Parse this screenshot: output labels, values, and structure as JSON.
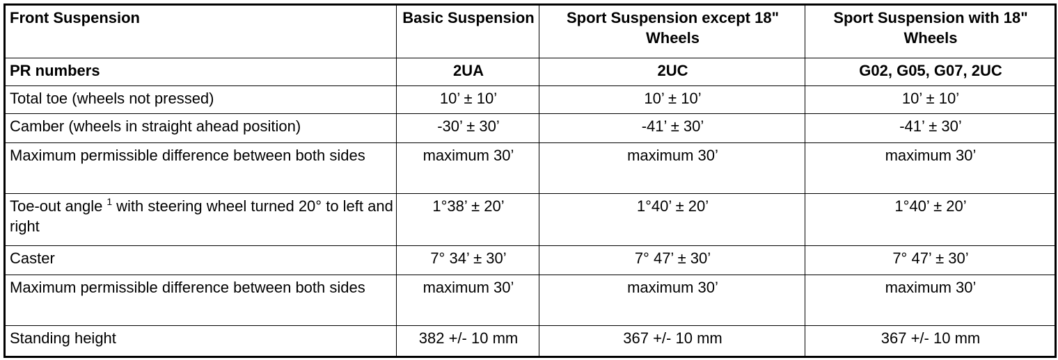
{
  "table": {
    "header": [
      "Front Suspension",
      "Basic Suspension",
      "Sport Suspension except 18\" Wheels",
      "Sport Suspension with 18\" Wheels"
    ],
    "pr": [
      "PR numbers",
      "2UA",
      "2UC",
      "G02, G05, G07, 2UC"
    ],
    "rows": [
      {
        "label": "Total toe (wheels not pressed)",
        "values": [
          "10’ ± 10’",
          "10’ ± 10’",
          "10’ ± 10’"
        ]
      },
      {
        "label": "Camber (wheels in straight ahead position)",
        "values": [
          "-30’ ± 30’",
          "-41’ ± 30’",
          "-41’ ± 30’"
        ]
      },
      {
        "label": "Maximum permissible difference between both sides",
        "values": [
          "maximum 30’",
          "maximum 30’",
          "maximum 30’"
        ]
      },
      {
        "label": "Toe-out angle",
        "note": "1",
        "label_rest": "with steering wheel turned 20° to left and right",
        "values": [
          "1°38’ ± 20’",
          "1°40’ ± 20’",
          "1°40’ ± 20’"
        ]
      },
      {
        "label": "Caster",
        "values": [
          "7° 34’ ± 30’",
          "7° 47’ ± 30’",
          "7° 47’ ± 30’"
        ]
      },
      {
        "label": "Maximum permissible difference between both sides",
        "values": [
          "maximum 30’",
          "maximum 30’",
          "maximum 30’"
        ]
      },
      {
        "label": "Standing height",
        "values": [
          "382 +/- 10 mm",
          "367 +/- 10 mm",
          "367 +/- 10 mm"
        ]
      }
    ]
  }
}
